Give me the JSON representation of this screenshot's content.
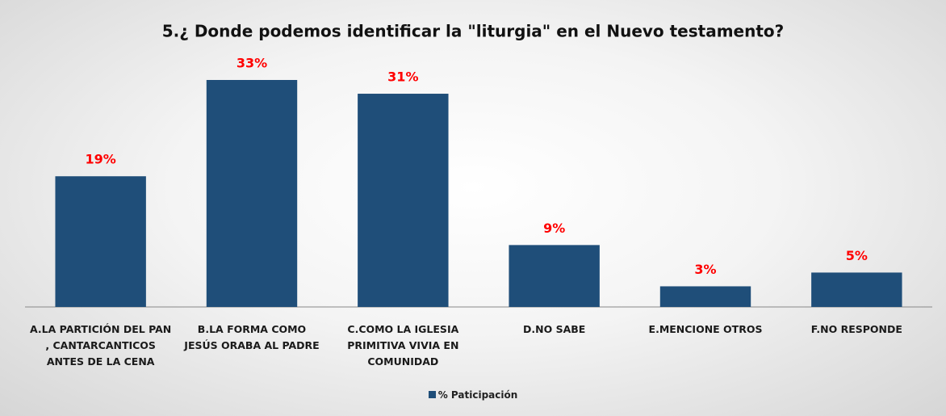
{
  "chart_data": {
    "type": "bar",
    "title": "5.¿ Donde podemos identificar la \"liturgia\" en el Nuevo testamento?",
    "categories": [
      "A.LA PARTICIÓN DEL PAN , CANTARCANTICOS ANTES DE LA CENA",
      "B.LA FORMA COMO JESÚS ORABA AL PADRE",
      "C.COMO LA IGLESIA PRIMITIVA VIVIA EN COMUNIDAD",
      "D.NO SABE",
      "E.MENCIONE OTROS",
      "F.NO RESPONDE"
    ],
    "series": [
      {
        "name": "% Paticipación",
        "color": "#1f4e79",
        "values": [
          19,
          33,
          31,
          9,
          3,
          5
        ],
        "value_labels": [
          "19%",
          "33%",
          "31%",
          "9%",
          "3%",
          "5%"
        ]
      }
    ],
    "label_color": "#ff0000"
  }
}
